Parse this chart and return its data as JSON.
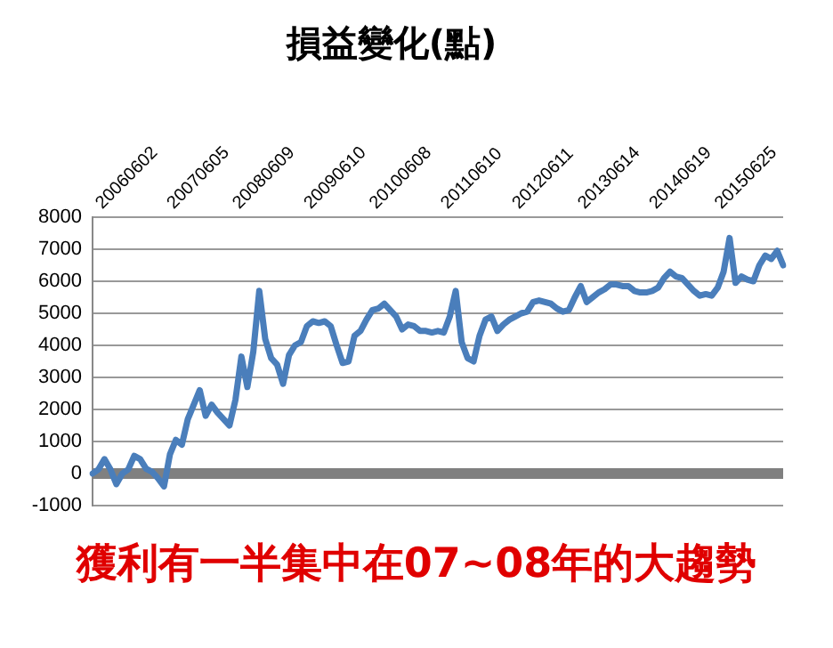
{
  "chart_data": {
    "type": "line",
    "title": "損益變化(點)",
    "categories": [
      null,
      null,
      null,
      null,
      null,
      null,
      "20060602",
      null,
      null,
      null,
      null,
      null,
      null,
      null,
      null,
      null,
      null,
      null,
      "20070605",
      null,
      null,
      null,
      null,
      null,
      null,
      null,
      null,
      null,
      null,
      "20080609",
      null,
      null,
      null,
      null,
      null,
      null,
      null,
      null,
      null,
      null,
      null,
      "20090610",
      null,
      null,
      null,
      null,
      null,
      null,
      null,
      null,
      null,
      null,
      "20100608",
      null,
      null,
      null,
      null,
      null,
      null,
      null,
      null,
      null,
      null,
      null,
      "20110610",
      null,
      null,
      null,
      null,
      null,
      null,
      null,
      null,
      null,
      null,
      null,
      "20120611",
      null,
      null,
      null,
      null,
      null,
      null,
      null,
      null,
      null,
      null,
      "20130614",
      null,
      null,
      null,
      null,
      null,
      null,
      null,
      null,
      null,
      null,
      null,
      "20140619",
      null,
      null,
      null,
      null,
      null,
      null,
      null,
      null,
      null,
      null,
      "20150625",
      null,
      null,
      null,
      null,
      null,
      null
    ],
    "series": [
      {
        "color": "#4a7ebb",
        "values": [
          0,
          130,
          450,
          130,
          -330,
          0,
          130,
          550,
          450,
          150,
          50,
          -150,
          -400,
          600,
          1050,
          900,
          1700,
          2150,
          2600,
          1800,
          2150,
          1900,
          1700,
          1500,
          2300,
          3650,
          2700,
          3800,
          5700,
          4200,
          3600,
          3400,
          2800,
          3700,
          4000,
          4100,
          4600,
          4750,
          4700,
          4750,
          4600,
          4000,
          3450,
          3500,
          4300,
          4450,
          4800,
          5100,
          5150,
          5300,
          5100,
          4900,
          4500,
          4650,
          4600,
          4450,
          4450,
          4400,
          4450,
          4400,
          4900,
          5700,
          4100,
          3600,
          3500,
          4300,
          4800,
          4900,
          4450,
          4650,
          4800,
          4900,
          5000,
          5050,
          5350,
          5400,
          5350,
          5300,
          5150,
          5050,
          5100,
          5500,
          5850,
          5350,
          5500,
          5650,
          5750,
          5900,
          5900,
          5850,
          5850,
          5700,
          5650,
          5650,
          5700,
          5800,
          6100,
          6300,
          6150,
          6100,
          5900,
          5700,
          5550,
          5600,
          5550,
          5800,
          6300,
          7350,
          5950,
          6150,
          6050,
          6000,
          6500,
          6800,
          6700,
          6950,
          6500
        ]
      }
    ],
    "ylim": [
      -1000,
      8000
    ],
    "yticks": [
      -1000,
      0,
      1000,
      2000,
      3000,
      4000,
      5000,
      6000,
      7000,
      8000
    ],
    "grid": "y",
    "legend": false,
    "marker": "none",
    "line_style": "solid",
    "ref_lines": [
      {
        "axis": "y",
        "value": 0,
        "color": "#808080"
      }
    ],
    "annotations": [
      "獲利有一半集中在07~08年的大趨勢"
    ]
  }
}
